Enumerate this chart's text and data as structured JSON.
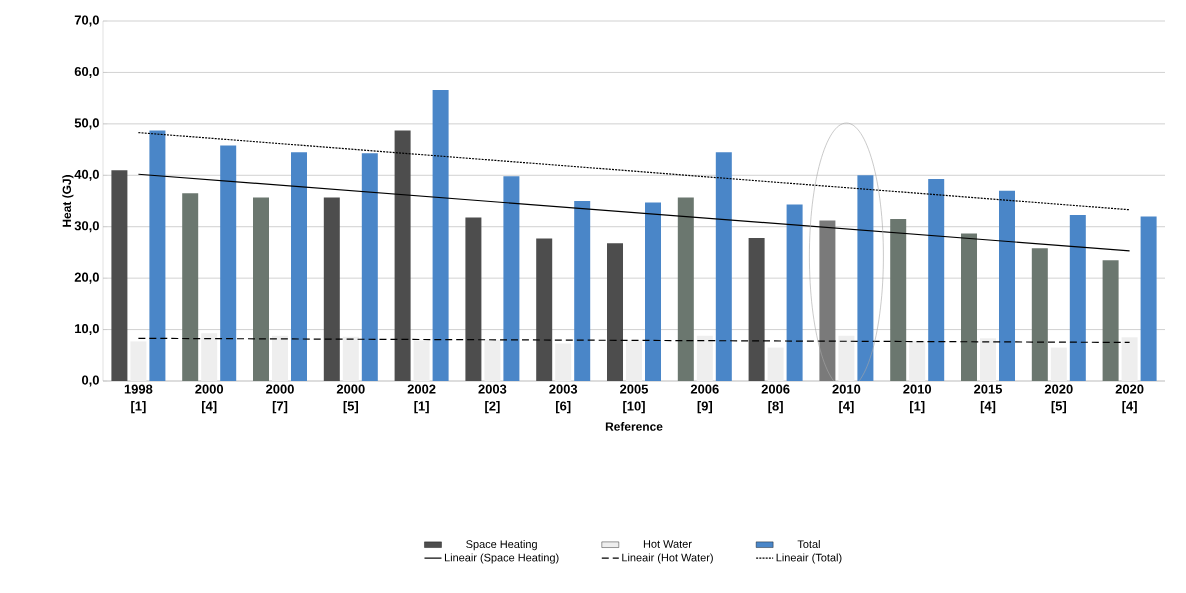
{
  "chart_data": {
    "type": "bar",
    "xlabel": "Reference",
    "ylabel": "Heat (GJ)",
    "categories": [
      "1998 [1]",
      "2000 [4]",
      "2000 [7]",
      "2000 [5]",
      "2002 [1]",
      "2003 [2]",
      "2003 [6]",
      "2005 [10]",
      "2006 [9]",
      "2006 [8]",
      "2010 [4]",
      "2010 [1]",
      "2015 [4]",
      "2020 [5]",
      "2020 [4]"
    ],
    "series": [
      {
        "name": "Space Heating",
        "color": "#4d4d4d",
        "colors": [
          "#4d4d4d",
          "#6b776f",
          "#6b776f",
          "#4d4d4d",
          "#4d4d4d",
          "#4d4d4d",
          "#4d4d4d",
          "#4d4d4d",
          "#6b776f",
          "#4d4d4d",
          "#7a7a7a",
          "#6b776f",
          "#6b776f",
          "#6b776f",
          "#6b776f"
        ],
        "values": [
          41.0,
          36.5,
          35.7,
          35.7,
          48.7,
          31.8,
          27.7,
          26.8,
          35.7,
          27.8,
          31.2,
          31.5,
          28.7,
          25.8,
          23.5
        ]
      },
      {
        "name": "Hot Water",
        "color": "#eeeeee",
        "values": [
          7.7,
          9.3,
          8.8,
          8.6,
          7.9,
          8.0,
          7.3,
          7.9,
          8.8,
          6.5,
          8.8,
          7.8,
          8.3,
          6.5,
          8.5
        ]
      },
      {
        "name": "Total",
        "color": "#4a86c8",
        "values": [
          48.7,
          45.8,
          44.5,
          44.3,
          56.6,
          39.8,
          35.0,
          34.7,
          44.5,
          34.3,
          40.0,
          39.3,
          37.0,
          32.3,
          32.0
        ]
      },
      {
        "name": "Lineair (Space Heating)",
        "type": "line",
        "color": "#000000",
        "line_style": "solid",
        "x": [
          "1998 [1]",
          "2020 [4]"
        ],
        "values": [
          40.2,
          25.3
        ]
      },
      {
        "name": "Lineair (Hot Water)",
        "type": "line",
        "color": "#000000",
        "line_style": "dashed",
        "x": [
          "1998 [1]",
          "2020 [4]"
        ],
        "values": [
          8.3,
          7.5
        ]
      },
      {
        "name": "Lineair (Total)",
        "type": "line",
        "color": "#000000",
        "line_style": "dotted",
        "x": [
          "1998 [1]",
          "2020 [4]"
        ],
        "values": [
          48.3,
          33.3
        ]
      }
    ],
    "ylim": [
      0,
      70
    ],
    "yticks": [
      {
        "value": 0,
        "label": "0,0"
      },
      {
        "value": 10,
        "label": "10,0"
      },
      {
        "value": 20,
        "label": "20,0"
      },
      {
        "value": 30,
        "label": "30,0"
      },
      {
        "value": 40,
        "label": "40,0"
      },
      {
        "value": 50,
        "label": "50,0"
      },
      {
        "value": 60,
        "label": "60,0"
      },
      {
        "value": 70,
        "label": "70,0"
      }
    ],
    "grid": "y",
    "legend": "bottom"
  }
}
